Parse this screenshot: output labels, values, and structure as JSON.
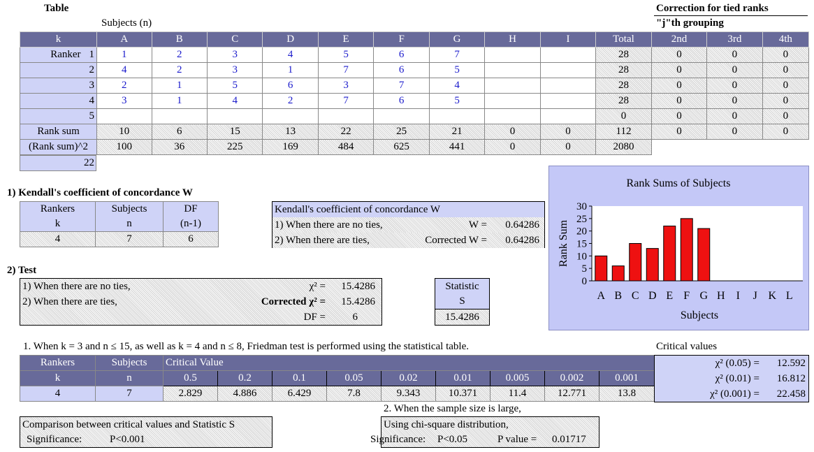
{
  "table_title": "Table",
  "subjects_label": "Subjects (n)",
  "tied_title": "Correction for tied ranks",
  "tied_sub": "\"j\"th grouping",
  "main_headers": [
    "k",
    "A",
    "B",
    "C",
    "D",
    "E",
    "F",
    "G",
    "H",
    "I",
    "Total"
  ],
  "tied_headers": [
    "2nd",
    "3rd",
    "4th"
  ],
  "ranker_label": "Ranker",
  "rankers": [
    {
      "k": "1",
      "ranks": [
        "1",
        "2",
        "3",
        "4",
        "5",
        "6",
        "7",
        "",
        ""
      ],
      "total": "28",
      "tied": [
        "0",
        "0",
        "0"
      ]
    },
    {
      "k": "2",
      "ranks": [
        "4",
        "2",
        "3",
        "1",
        "7",
        "6",
        "5",
        "",
        ""
      ],
      "total": "28",
      "tied": [
        "0",
        "0",
        "0"
      ]
    },
    {
      "k": "3",
      "ranks": [
        "2",
        "1",
        "5",
        "6",
        "3",
        "7",
        "4",
        "",
        ""
      ],
      "total": "28",
      "tied": [
        "0",
        "0",
        "0"
      ]
    },
    {
      "k": "4",
      "ranks": [
        "3",
        "1",
        "4",
        "2",
        "7",
        "6",
        "5",
        "",
        ""
      ],
      "total": "28",
      "tied": [
        "0",
        "0",
        "0"
      ]
    },
    {
      "k": "5",
      "ranks": [
        "",
        "",
        "",
        "",
        "",
        "",
        "",
        "",
        ""
      ],
      "total": "0",
      "tied": [
        "0",
        "0",
        "0"
      ]
    }
  ],
  "rank_sum": {
    "label": "Rank sum",
    "values": [
      "10",
      "6",
      "15",
      "13",
      "22",
      "25",
      "21",
      "0",
      "0"
    ],
    "total": "112",
    "tied": [
      "0",
      "0",
      "0"
    ]
  },
  "rank_sum_sq": {
    "label": "(Rank sum)^2",
    "values": [
      "100",
      "36",
      "225",
      "169",
      "484",
      "625",
      "441",
      "0",
      "0"
    ],
    "total": "2080"
  },
  "extra_value": "22",
  "kendall": {
    "section_title": "1) Kendall's coefficient of concordance W",
    "headers": [
      [
        "Rankers",
        "k"
      ],
      [
        "Subjects",
        "n"
      ],
      [
        "DF",
        "(n-1)"
      ]
    ],
    "values": [
      "4",
      "7",
      "6"
    ],
    "box_title": "Kendall's coefficient of concordance W",
    "no_ties_label": "1) When there are no ties,",
    "no_ties_w": "W =",
    "no_ties_value": "0.64286",
    "ties_label": "2) When there are ties,",
    "ties_w": "Corrected W =",
    "ties_value": "0.64286"
  },
  "test": {
    "section_title": "2) Test",
    "no_ties_label": "1) When there are no ties,",
    "chi_label": "χ² =",
    "chi_value": "15.4286",
    "ties_label": "2) When there are ties,",
    "corrected_prefix": "Corrected",
    "corrected_chi": "χ² =",
    "corrected_value": "15.4286",
    "df_label": "DF =",
    "df_value": "6",
    "stat_label1": "Statistic",
    "stat_label2": "S",
    "stat_value": "15.4286"
  },
  "chart_data": {
    "type": "bar",
    "title": "Rank Sums of Subjects",
    "xlabel": "Subjects",
    "ylabel": "Rank Sum",
    "categories": [
      "A",
      "B",
      "C",
      "D",
      "E",
      "F",
      "G",
      "H",
      "I",
      "J",
      "K",
      "L"
    ],
    "values": [
      10,
      6,
      15,
      13,
      22,
      25,
      21,
      null,
      null,
      null,
      null,
      null
    ],
    "ylim": [
      0,
      30
    ],
    "yticks": [
      "0",
      "5",
      "10",
      "15",
      "20",
      "25",
      "30"
    ],
    "bar_color": "#ee1111",
    "grid": false
  },
  "critical": {
    "note": "1. When k = 3 and n ≤ 15, as well as k = 4 and n ≤ 8, Friedman test is performed using the statistical table.",
    "h_rankers": "Rankers",
    "h_subjects": "Subjects",
    "h_cv": "Critical Value",
    "k": "k",
    "n": "n",
    "levels": [
      "0.5",
      "0.2",
      "0.1",
      "0.05",
      "0.02",
      "0.01",
      "0.005",
      "0.002",
      "0.001"
    ],
    "k_val": "4",
    "n_val": "7",
    "values": [
      "2.829",
      "4.886",
      "6.429",
      "7.8",
      "9.343",
      "10.371",
      "11.4",
      "12.771",
      "13.8"
    ]
  },
  "crit_chi": {
    "title": "Critical values",
    "rows": [
      {
        "label": "χ² (0.05) =",
        "value": "12.592"
      },
      {
        "label": "χ² (0.01) =",
        "value": "16.812"
      },
      {
        "label": "χ² (0.001) =",
        "value": "22.458"
      }
    ]
  },
  "comparison": {
    "title": "Comparison between critical values and Statistic S",
    "sig_label": "Significance:",
    "sig_value": "P<0.001"
  },
  "large": {
    "title": "2. When the sample size is large,",
    "method": "Using chi-square distribution,",
    "sig_label": "Significance:",
    "sig_value": "P<0.05",
    "p_label": "P value =",
    "p_value": "0.01717"
  },
  "colors": {
    "header": "#686a9a",
    "light": "#cfd3f7",
    "bar": "#ee1111"
  }
}
